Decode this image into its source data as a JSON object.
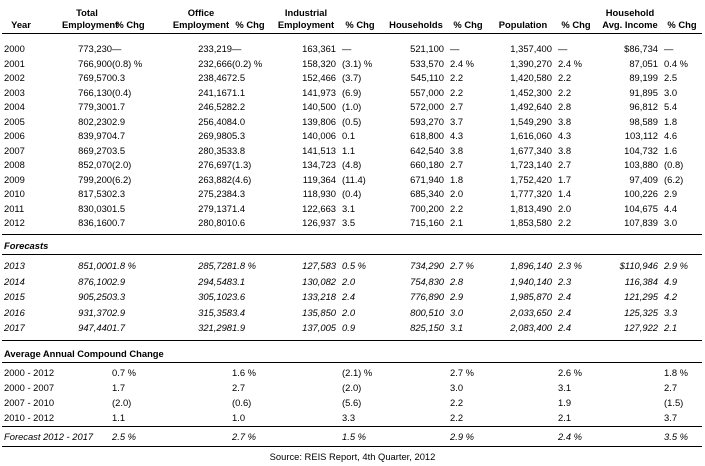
{
  "header": {
    "line1": [
      "",
      "Total",
      "",
      "Office",
      "",
      "Industrial",
      "",
      "",
      "",
      "",
      "",
      "Household",
      ""
    ],
    "line2": [
      "Year",
      "Employment",
      "% Chg",
      "Employment",
      "% Chg",
      "Employment",
      "% Chg",
      "Households",
      "% Chg",
      "Population",
      "% Chg",
      "Avg. Income",
      "% Chg"
    ]
  },
  "historical": [
    [
      "2000",
      "773,230",
      "—",
      "233,219",
      "—",
      "163,361",
      "—",
      "521,100",
      "—",
      "1,357,400",
      "—",
      "$86,734",
      "—"
    ],
    [
      "2001",
      "766,900",
      "(0.8) %",
      "232,666",
      "(0.2) %",
      "158,320",
      "(3.1) %",
      "533,570",
      "2.4 %",
      "1,390,270",
      "2.4 %",
      "87,051",
      "0.4 %"
    ],
    [
      "2002",
      "769,570",
      "0.3",
      "238,467",
      "2.5",
      "152,466",
      "(3.7)",
      "545,110",
      "2.2",
      "1,420,580",
      "2.2",
      "89,199",
      "2.5"
    ],
    [
      "2003",
      "766,130",
      "(0.4)",
      "241,167",
      "1.1",
      "141,973",
      "(6.9)",
      "557,000",
      "2.2",
      "1,452,300",
      "2.2",
      "91,895",
      "3.0"
    ],
    [
      "2004",
      "779,300",
      "1.7",
      "246,528",
      "2.2",
      "140,500",
      "(1.0)",
      "572,000",
      "2.7",
      "1,492,640",
      "2.8",
      "96,812",
      "5.4"
    ],
    [
      "2005",
      "802,230",
      "2.9",
      "256,408",
      "4.0",
      "139,806",
      "(0.5)",
      "593,270",
      "3.7",
      "1,549,290",
      "3.8",
      "98,589",
      "1.8"
    ],
    [
      "2006",
      "839,970",
      "4.7",
      "269,980",
      "5.3",
      "140,006",
      "0.1",
      "618,800",
      "4.3",
      "1,616,060",
      "4.3",
      "103,112",
      "4.6"
    ],
    [
      "2007",
      "869,270",
      "3.5",
      "280,353",
      "3.8",
      "141,513",
      "1.1",
      "642,540",
      "3.8",
      "1,677,340",
      "3.8",
      "104,732",
      "1.6"
    ],
    [
      "2008",
      "852,070",
      "(2.0)",
      "276,697",
      "(1.3)",
      "134,723",
      "(4.8)",
      "660,180",
      "2.7",
      "1,723,140",
      "2.7",
      "103,880",
      "(0.8)"
    ],
    [
      "2009",
      "799,200",
      "(6.2)",
      "263,882",
      "(4.6)",
      "119,364",
      "(11.4)",
      "671,940",
      "1.8",
      "1,752,420",
      "1.7",
      "97,409",
      "(6.2)"
    ],
    [
      "2010",
      "817,530",
      "2.3",
      "275,238",
      "4.3",
      "118,930",
      "(0.4)",
      "685,340",
      "2.0",
      "1,777,320",
      "1.4",
      "100,226",
      "2.9"
    ],
    [
      "2011",
      "830,030",
      "1.5",
      "279,137",
      "1.4",
      "122,663",
      "3.1",
      "700,200",
      "2.2",
      "1,813,490",
      "2.0",
      "104,675",
      "4.4"
    ],
    [
      "2012",
      "836,160",
      "0.7",
      "280,801",
      "0.6",
      "126,937",
      "3.5",
      "715,160",
      "2.1",
      "1,853,580",
      "2.2",
      "107,839",
      "3.0"
    ]
  ],
  "forecast_title": "Forecasts",
  "forecasts": [
    [
      "2013",
      "851,000",
      "1.8 %",
      "285,728",
      "1.8 %",
      "127,583",
      "0.5 %",
      "734,290",
      "2.7 %",
      "1,896,140",
      "2.3 %",
      "$110,946",
      "2.9 %"
    ],
    [
      "2014",
      "876,100",
      "2.9",
      "294,548",
      "3.1",
      "130,082",
      "2.0",
      "754,830",
      "2.8",
      "1,940,140",
      "2.3",
      "116,384",
      "4.9"
    ],
    [
      "2015",
      "905,250",
      "3.3",
      "305,102",
      "3.6",
      "133,218",
      "2.4",
      "776,890",
      "2.9",
      "1,985,870",
      "2.4",
      "121,295",
      "4.2"
    ],
    [
      "2016",
      "931,370",
      "2.9",
      "315,358",
      "3.4",
      "135,850",
      "2.0",
      "800,510",
      "3.0",
      "2,033,650",
      "2.4",
      "125,325",
      "3.3"
    ],
    [
      "2017",
      "947,440",
      "1.7",
      "321,298",
      "1.9",
      "137,005",
      "0.9",
      "825,150",
      "3.1",
      "2,083,400",
      "2.4",
      "127,922",
      "2.1"
    ]
  ],
  "cagr_title": "Average Annual Compound Change",
  "cagr": [
    [
      "2000 - 2012",
      "",
      "0.7 %",
      "",
      "1.6 %",
      "",
      "(2.1) %",
      "",
      "2.7 %",
      "",
      "2.6 %",
      "",
      "1.8 %"
    ],
    [
      "2000 - 2007",
      "",
      "1.7",
      "",
      "2.7",
      "",
      "(2.0)",
      "",
      "3.0",
      "",
      "3.1",
      "",
      "2.7"
    ],
    [
      "2007 - 2010",
      "",
      "(2.0)",
      "",
      "(0.6)",
      "",
      "(5.6)",
      "",
      "2.2",
      "",
      "1.9",
      "",
      "(1.5)"
    ],
    [
      "2010 - 2012",
      "",
      "1.1",
      "",
      "1.0",
      "",
      "3.3",
      "",
      "2.2",
      "",
      "2.1",
      "",
      "3.7"
    ]
  ],
  "forecast_cagr": [
    "Forecast 2012 - 2017",
    "",
    "2.5 %",
    "",
    "2.7 %",
    "",
    "1.5 %",
    "",
    "2.9 %",
    "",
    "2.4 %",
    "",
    "3.5 %"
  ],
  "source": "Source: REIS Report, 4th Quarter, 2012"
}
